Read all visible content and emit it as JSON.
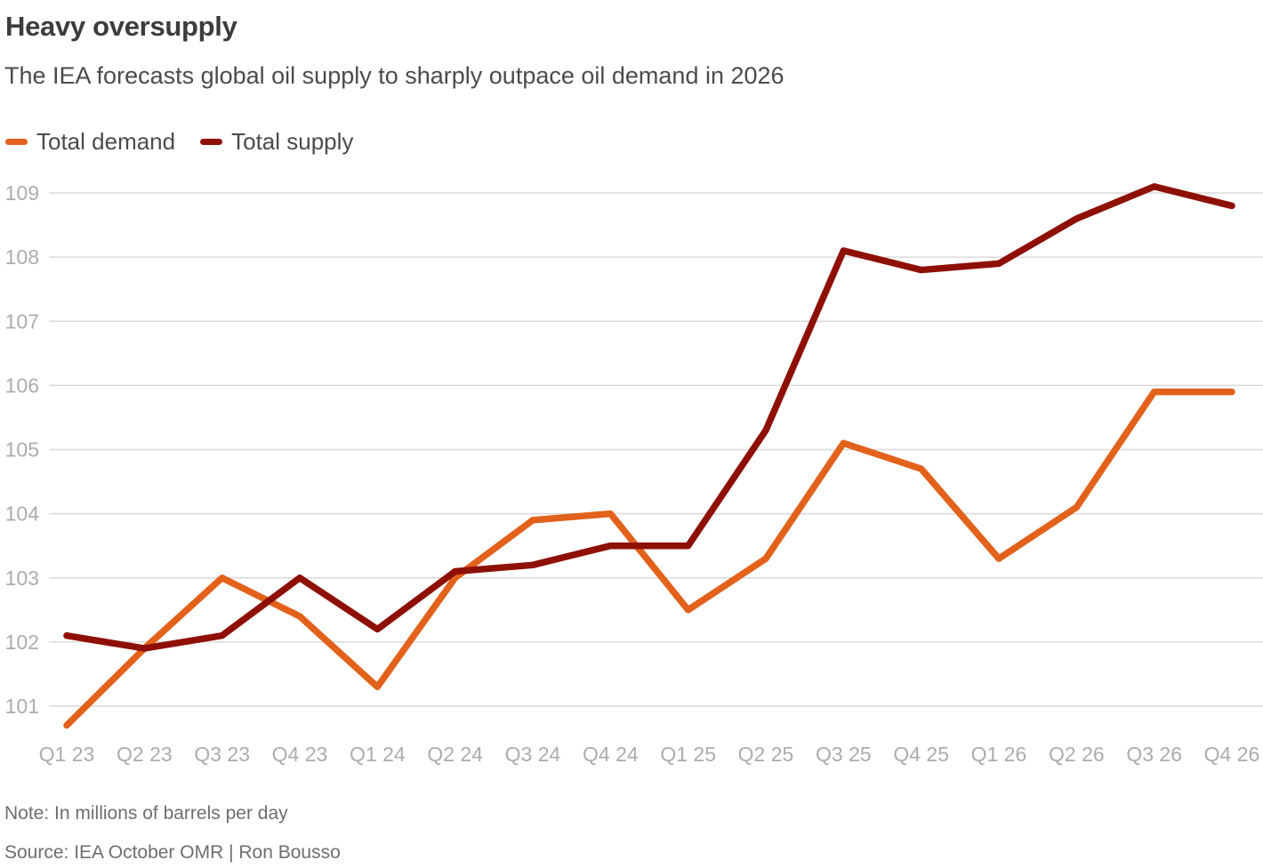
{
  "header": {
    "title": "Heavy oversupply",
    "subtitle": "The IEA forecasts global oil supply to sharply outpace oil demand in 2026"
  },
  "footer": {
    "note": "Note: In millions of barrels per day",
    "source": "Source: IEA October OMR | Ron Bousso"
  },
  "chart_data": {
    "type": "line",
    "title": "Heavy oversupply",
    "subtitle": "The IEA forecasts global oil supply to sharply outpace oil demand in 2026",
    "unit_note": "In millions of barrels per day",
    "categories": [
      "Q1 23",
      "Q2 23",
      "Q3 23",
      "Q4 23",
      "Q1 24",
      "Q2 24",
      "Q3 24",
      "Q4 24",
      "Q1 25",
      "Q2 25",
      "Q3 25",
      "Q4 25",
      "Q1 26",
      "Q2 26",
      "Q3 26",
      "Q4 26"
    ],
    "series": [
      {
        "name": "Total demand",
        "color": "#e2621b",
        "values": [
          100.7,
          101.9,
          103.0,
          102.4,
          101.3,
          103.0,
          103.9,
          104.0,
          102.5,
          103.3,
          105.1,
          104.7,
          103.3,
          104.1,
          105.9,
          105.9
        ]
      },
      {
        "name": "Total supply",
        "color": "#8e1005",
        "values": [
          102.1,
          101.9,
          102.1,
          103.0,
          102.2,
          103.1,
          103.2,
          103.5,
          103.5,
          105.3,
          108.1,
          107.8,
          107.9,
          108.6,
          109.1,
          108.8
        ]
      }
    ],
    "yticks": [
      101,
      102,
      103,
      104,
      105,
      106,
      107,
      108,
      109
    ],
    "ylim": [
      100.5,
      109.3
    ],
    "grid": "horizontal",
    "legend_position": "top-left",
    "xlabel": "",
    "ylabel": "",
    "axis_color": "#acacac",
    "grid_color": "#d9d9d9"
  }
}
